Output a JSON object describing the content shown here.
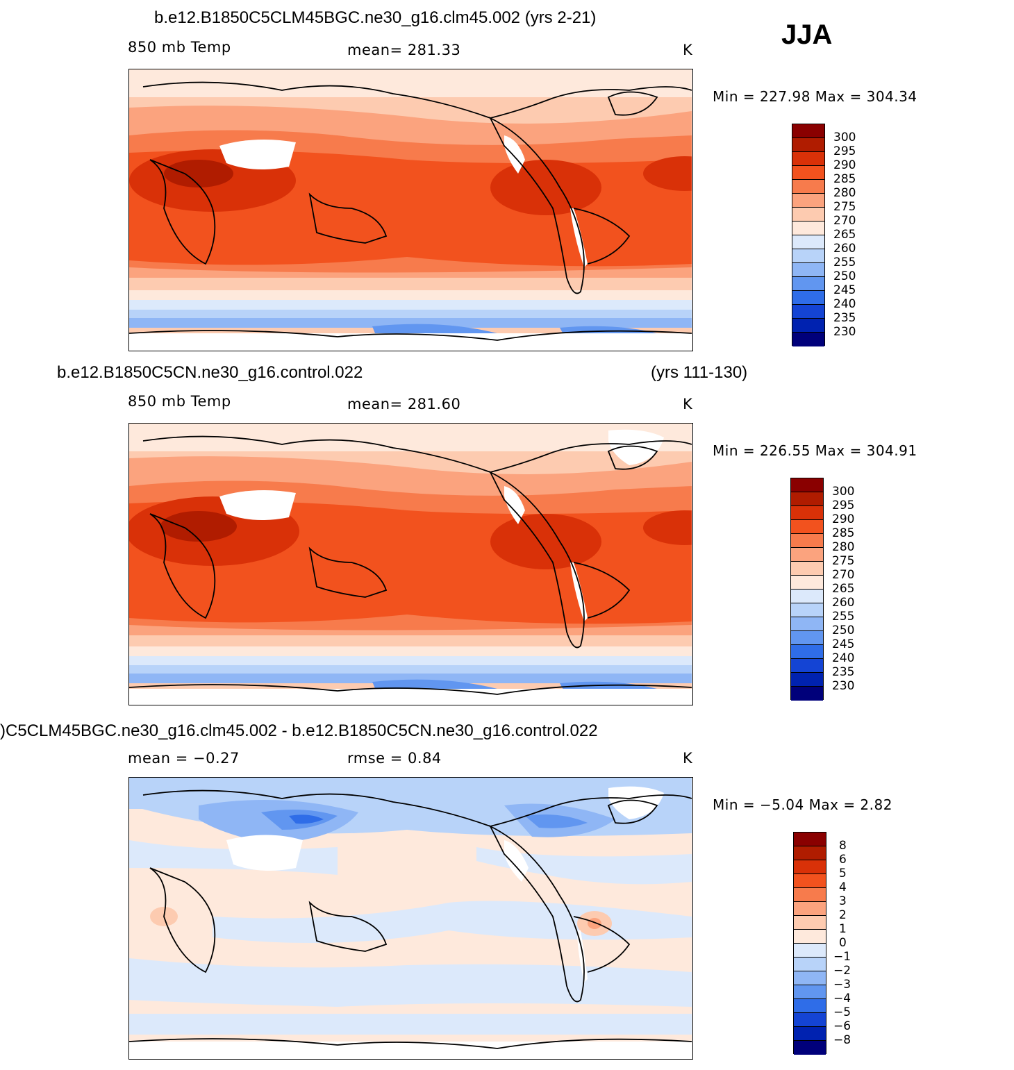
{
  "season": "JJA",
  "panels": [
    {
      "title": "b.e12.B1850C5CLM45BGC.ne30_g16.clm45.002 (yrs 2-21)",
      "title_right": "",
      "left_label": "850 mb Temp",
      "center_label": "mean= 281.33",
      "units": "K",
      "minmax": "Min = 227.98 Max = 304.34",
      "colorbar": {
        "colors": [
          "#8a0000",
          "#b01c00",
          "#d93108",
          "#f2521e",
          "#f77b4c",
          "#fba37e",
          "#fdcbb0",
          "#fee9dc",
          "#dce9fb",
          "#b8d3f9",
          "#8fb6f5",
          "#6196f0",
          "#2f6de8",
          "#1444d4",
          "#0022b0",
          "#00007a"
        ],
        "labels": [
          "300",
          "295",
          "290",
          "285",
          "280",
          "275",
          "270",
          "265",
          "260",
          "255",
          "250",
          "245",
          "240",
          "235",
          "230"
        ]
      }
    },
    {
      "title": "b.e12.B1850C5CN.ne30_g16.control.022",
      "title_right": "(yrs 111-130)",
      "left_label": "850 mb Temp",
      "center_label": "mean= 281.60",
      "units": "K",
      "minmax": "Min = 226.55 Max = 304.91",
      "colorbar": {
        "colors": [
          "#8a0000",
          "#b01c00",
          "#d93108",
          "#f2521e",
          "#f77b4c",
          "#fba37e",
          "#fdcbb0",
          "#fee9dc",
          "#dce9fb",
          "#b8d3f9",
          "#8fb6f5",
          "#6196f0",
          "#2f6de8",
          "#1444d4",
          "#0022b0",
          "#00007a"
        ],
        "labels": [
          "300",
          "295",
          "290",
          "285",
          "280",
          "275",
          "270",
          "265",
          "260",
          "255",
          "250",
          "245",
          "240",
          "235",
          "230"
        ]
      }
    },
    {
      "title": ")C5CLM45BGC.ne30_g16.clm45.002 - b.e12.B1850C5CN.ne30_g16.control.022",
      "title_right": "",
      "left_label": "mean =   −0.27",
      "center_label": "rmse =    0.84",
      "units": "K",
      "minmax": "Min =   −5.04 Max =    2.82",
      "colorbar": {
        "colors": [
          "#8a0000",
          "#b01c00",
          "#d93108",
          "#f2521e",
          "#f77b4c",
          "#fba37e",
          "#fdcbb0",
          "#fee9dc",
          "#dce9fb",
          "#b8d3f9",
          "#8fb6f5",
          "#6196f0",
          "#2f6de8",
          "#1444d4",
          "#0022b0",
          "#00007a"
        ],
        "labels": [
          "8",
          "6",
          "5",
          "4",
          "3",
          "2",
          "1",
          "0",
          "−1",
          "−2",
          "−3",
          "−4",
          "−5",
          "−6",
          "−8"
        ]
      }
    }
  ]
}
